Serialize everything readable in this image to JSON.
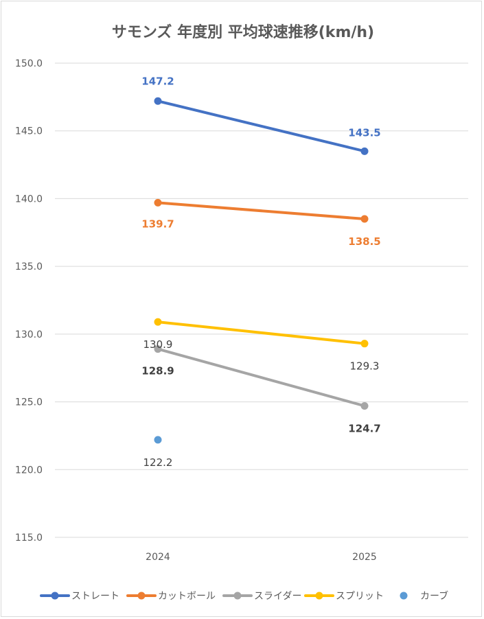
{
  "chart_data": {
    "type": "line",
    "title": "サモンズ 年度別 平均球速推移(km/h)",
    "xlabel": "",
    "ylabel": "",
    "categories": [
      "2024",
      "2025"
    ],
    "ylim": [
      115,
      150
    ],
    "yticks": [
      "115.0",
      "120.0",
      "125.0",
      "130.0",
      "135.0",
      "140.0",
      "145.0",
      "150.0"
    ],
    "grid": true,
    "legend_position": "bottom",
    "series": [
      {
        "name": "ストレート",
        "color": "#4472C4",
        "values": [
          147.2,
          143.5
        ],
        "labels": [
          "147.2",
          "143.5"
        ],
        "label_color": "#4472C4",
        "label_bold": true
      },
      {
        "name": "カットボール",
        "color": "#ED7D31",
        "values": [
          139.7,
          138.5
        ],
        "labels": [
          "139.7",
          "138.5"
        ],
        "label_color": "#ED7D31",
        "label_bold": true
      },
      {
        "name": "スライダー",
        "color": "#A5A5A5",
        "values": [
          128.9,
          124.7
        ],
        "labels": [
          "128.9",
          "124.7"
        ],
        "label_color": "#404040",
        "label_bold": true
      },
      {
        "name": "スプリット",
        "color": "#FFC000",
        "values": [
          130.9,
          129.3
        ],
        "labels": [
          "130.9",
          "129.3"
        ],
        "label_color": "#404040",
        "label_bold": false
      },
      {
        "name": "カーブ",
        "color": "#5B9BD5",
        "values": [
          122.2,
          null
        ],
        "labels": [
          "122.2",
          ""
        ],
        "label_color": "#404040",
        "label_bold": false
      }
    ]
  }
}
